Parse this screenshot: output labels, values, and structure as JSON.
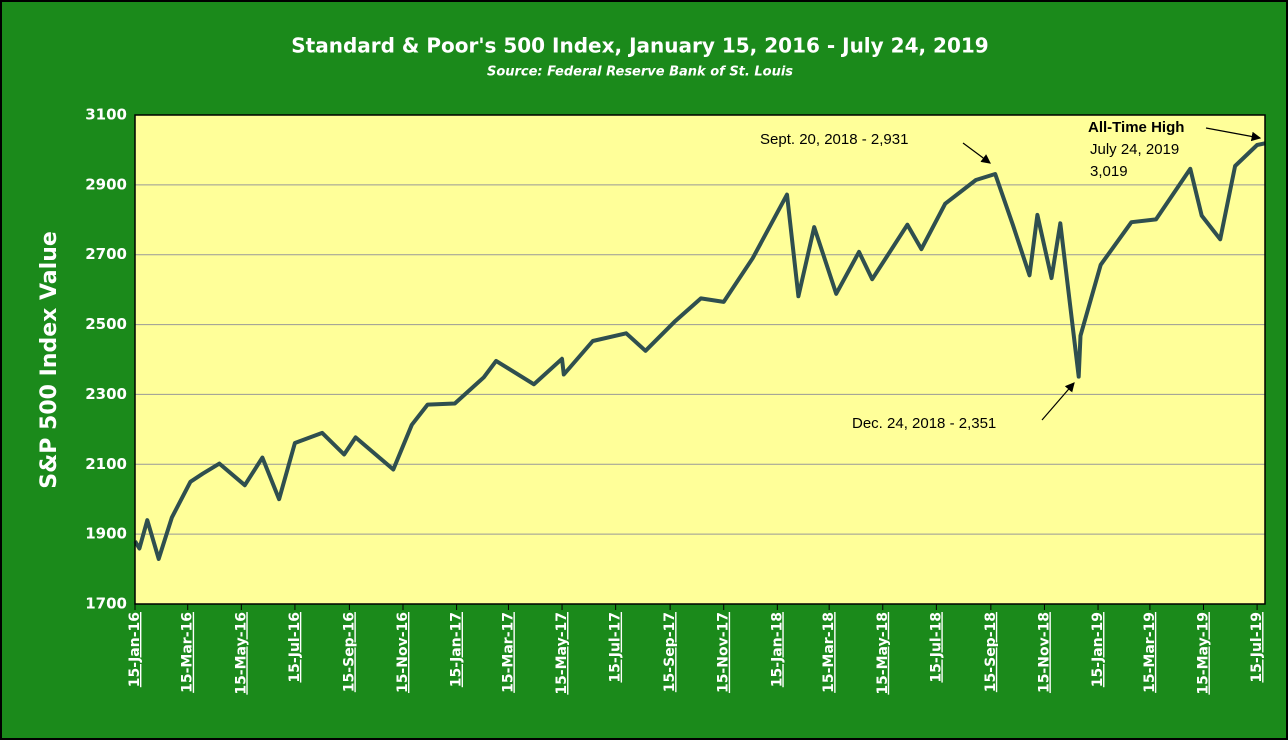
{
  "chart_data": {
    "type": "line",
    "title": "Standard  & Poor's 500 Index, January  15, 2016 - July 24, 2019",
    "subtitle": "Source: Federal Reserve Bank of St. Louis",
    "y_label": "S&P 500 Index Value",
    "x": [
      "2016-01-15",
      "2016-01-20",
      "2016-01-29",
      "2016-02-11",
      "2016-02-26",
      "2016-03-18",
      "2016-04-01",
      "2016-04-20",
      "2016-05-19",
      "2016-06-08",
      "2016-06-27",
      "2016-07-15",
      "2016-08-15",
      "2016-09-09",
      "2016-09-22",
      "2016-11-04",
      "2016-11-25",
      "2016-12-13",
      "2017-01-13",
      "2017-02-15",
      "2017-03-01",
      "2017-04-13",
      "2017-05-15",
      "2017-05-17",
      "2017-06-19",
      "2017-07-27",
      "2017-08-18",
      "2017-09-20",
      "2017-10-20",
      "2017-11-15",
      "2017-12-18",
      "2018-01-26",
      "2018-02-08",
      "2018-02-26",
      "2018-03-23",
      "2018-04-18",
      "2018-05-03",
      "2018-06-12",
      "2018-06-28",
      "2018-07-25",
      "2018-08-29",
      "2018-09-20",
      "2018-10-10",
      "2018-10-29",
      "2018-11-07",
      "2018-11-23",
      "2018-12-03",
      "2018-12-24",
      "2018-12-26",
      "2019-01-18",
      "2019-02-22",
      "2019-03-22",
      "2019-04-30",
      "2019-05-13",
      "2019-06-03",
      "2019-06-20",
      "2019-07-15",
      "2019-07-24"
    ],
    "values": [
      1880,
      1859,
      1940,
      1829,
      1948,
      2050,
      2073,
      2102,
      2040,
      2119,
      2000,
      2161,
      2190,
      2128,
      2177,
      2085,
      2213,
      2271,
      2274,
      2349,
      2396,
      2329,
      2402,
      2357,
      2453,
      2475,
      2425,
      2508,
      2575,
      2565,
      2690,
      2872,
      2581,
      2779,
      2588,
      2708,
      2630,
      2786,
      2716,
      2846,
      2914,
      2931,
      2786,
      2641,
      2814,
      2633,
      2790,
      2351,
      2468,
      2671,
      2793,
      2801,
      2946,
      2812,
      2744,
      2954,
      3014,
      3019
    ],
    "color": "#2f4f4f",
    "xlim": [
      "2016-01-15",
      "2019-07-24"
    ],
    "xticks": [
      {
        "value": "2016-01-15",
        "label": "15-Jan-16"
      },
      {
        "value": "2016-03-15",
        "label": "15-Mar-16"
      },
      {
        "value": "2016-05-15",
        "label": "15-May-16"
      },
      {
        "value": "2016-07-15",
        "label": "15-Jul-16"
      },
      {
        "value": "2016-09-15",
        "label": "15-Sep-16"
      },
      {
        "value": "2016-11-15",
        "label": "15-Nov-16"
      },
      {
        "value": "2017-01-15",
        "label": "15-Jan-17"
      },
      {
        "value": "2017-03-15",
        "label": "15-Mar-17"
      },
      {
        "value": "2017-05-15",
        "label": "15-May-17"
      },
      {
        "value": "2017-07-15",
        "label": "15-Jul-17"
      },
      {
        "value": "2017-09-15",
        "label": "15-Sep-17"
      },
      {
        "value": "2017-11-15",
        "label": "15-Nov-17"
      },
      {
        "value": "2018-01-15",
        "label": "15-Jan-18"
      },
      {
        "value": "2018-03-15",
        "label": "15-Mar-18"
      },
      {
        "value": "2018-05-15",
        "label": "15-May-18"
      },
      {
        "value": "2018-07-15",
        "label": "15-Jul-18"
      },
      {
        "value": "2018-09-15",
        "label": "15-Sep-18"
      },
      {
        "value": "2018-11-15",
        "label": "15-Nov-18"
      },
      {
        "value": "2019-01-15",
        "label": "15-Jan-19"
      },
      {
        "value": "2019-03-15",
        "label": "15-Mar-19"
      },
      {
        "value": "2019-05-15",
        "label": "15-May-19"
      },
      {
        "value": "2019-07-15",
        "label": "15-Jul-19"
      }
    ],
    "ylim": [
      1700,
      3100
    ],
    "yticks": [
      1700,
      1900,
      2100,
      2300,
      2500,
      2700,
      2900,
      3100
    ],
    "grid": true,
    "annotations": [
      "Sept. 20, 2018 - 2,931",
      "Dec. 24, 2018 - 2,351",
      "All-Time High",
      "July 24, 2019",
      "3,019"
    ]
  }
}
